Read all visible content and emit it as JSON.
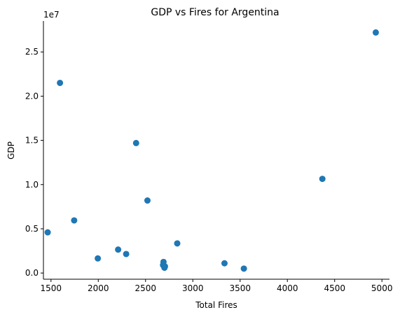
{
  "chart_data": {
    "type": "scatter",
    "title": "GDP vs Fires for Argentina",
    "xlabel": "Total Fires",
    "ylabel": "GDP",
    "y_offset_text": "1e7",
    "xlim": [
      1420,
      5080
    ],
    "ylim": [
      -0.07,
      2.85
    ],
    "x_ticks": [
      1500,
      2000,
      2500,
      3000,
      3500,
      4000,
      4500,
      5000
    ],
    "x_tick_labels": [
      "1500",
      "2000",
      "2500",
      "3000",
      "3500",
      "4000",
      "4500",
      "5000"
    ],
    "y_ticks": [
      0.0,
      0.5,
      1.0,
      1.5,
      2.0,
      2.5
    ],
    "y_tick_labels": [
      "0.0",
      "0.5",
      "1.0",
      "1.5",
      "2.0",
      "2.5"
    ],
    "grid": false,
    "marker_color": "#1f77b4",
    "points": [
      {
        "x": 1465,
        "y": 0.46
      },
      {
        "x": 1595,
        "y": 2.15
      },
      {
        "x": 1745,
        "y": 0.595
      },
      {
        "x": 1995,
        "y": 0.165
      },
      {
        "x": 2210,
        "y": 0.265
      },
      {
        "x": 2295,
        "y": 0.215
      },
      {
        "x": 2400,
        "y": 1.47
      },
      {
        "x": 2520,
        "y": 0.82
      },
      {
        "x": 2685,
        "y": 0.09
      },
      {
        "x": 2690,
        "y": 0.125
      },
      {
        "x": 2700,
        "y": 0.06
      },
      {
        "x": 2705,
        "y": 0.075
      },
      {
        "x": 2835,
        "y": 0.335
      },
      {
        "x": 3335,
        "y": 0.11
      },
      {
        "x": 3540,
        "y": 0.05
      },
      {
        "x": 4370,
        "y": 1.065
      },
      {
        "x": 4935,
        "y": 2.72
      }
    ]
  }
}
